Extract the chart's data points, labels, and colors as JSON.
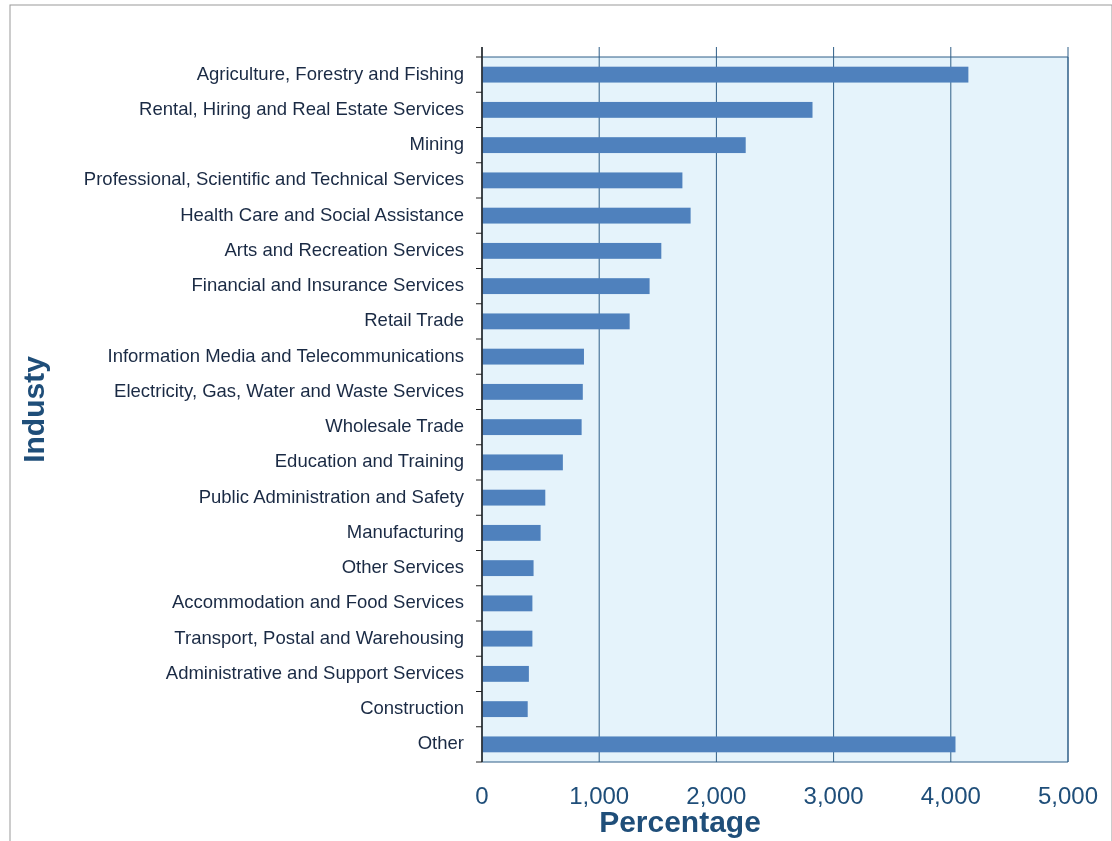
{
  "chart_data": {
    "type": "bar",
    "orientation": "horizontal",
    "xlabel": "Percentage",
    "ylabel": "Industy",
    "categories": [
      "Agriculture, Forestry and Fishing",
      "Rental, Hiring and Real Estate Services",
      "Mining",
      "Professional, Scientific and Technical Services",
      "Health Care and Social Assistance",
      "Arts and Recreation Services",
      "Financial and Insurance Services",
      "Retail Trade",
      "Information Media and Telecommunications",
      "Electricity, Gas, Water and Waste Services",
      "Wholesale Trade",
      "Education and Training",
      "Public Administration and Safety",
      "Manufacturing",
      "Other Services",
      "Accommodation and Food Services",
      "Transport, Postal and Warehousing",
      "Administrative and Support Services",
      "Construction",
      "Other"
    ],
    "values": [
      4150,
      2820,
      2250,
      1710,
      1780,
      1530,
      1430,
      1260,
      870,
      860,
      850,
      690,
      540,
      500,
      440,
      430,
      430,
      400,
      390,
      4040
    ],
    "color": "#4f81bd",
    "xlim": [
      0,
      5000
    ],
    "xticks": [
      0,
      {
        "value": 1000,
        "label": "1,000"
      },
      {
        "value": 2000,
        "label": "2,000"
      },
      {
        "value": 3000,
        "label": "3,000"
      },
      {
        "value": 4000,
        "label": "4,000"
      },
      {
        "value": 5000,
        "label": "5,000"
      }
    ],
    "grid": "x"
  }
}
